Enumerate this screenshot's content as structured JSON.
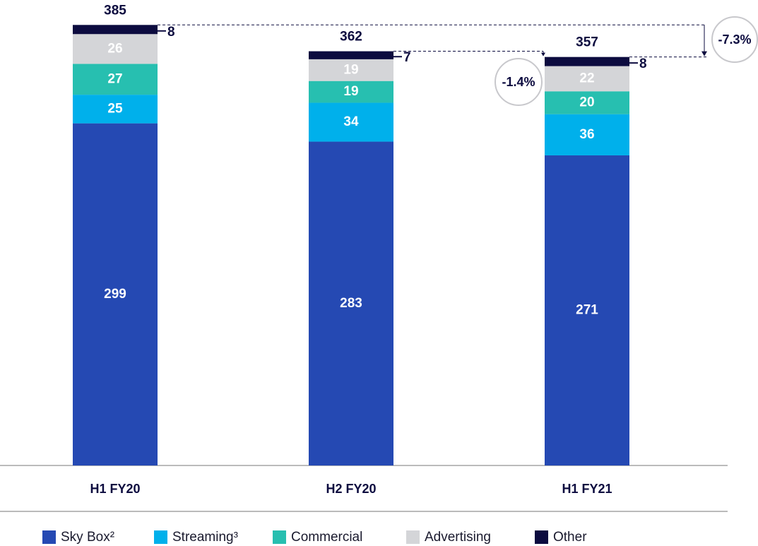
{
  "chart_data": {
    "type": "stacked_bar",
    "categories": [
      "H1 FY20",
      "H2 FY20",
      "H1 FY21"
    ],
    "series": [
      {
        "name": "Sky Box²",
        "color": "#2549b3",
        "values": [
          299,
          283,
          271
        ]
      },
      {
        "name": "Streaming³",
        "color": "#00b0eb",
        "values": [
          25,
          34,
          36
        ]
      },
      {
        "name": "Commercial",
        "color": "#27bfb0",
        "values": [
          27,
          19,
          20
        ]
      },
      {
        "name": "Advertising",
        "color": "#d4d5d8",
        "values": [
          26,
          19,
          22
        ]
      },
      {
        "name": "Other",
        "color": "#0c0b3f",
        "values": [
          8,
          7,
          8
        ]
      }
    ],
    "totals": [
      385,
      362,
      357
    ],
    "annotations": [
      "-1.4%",
      "-7.3%"
    ]
  }
}
